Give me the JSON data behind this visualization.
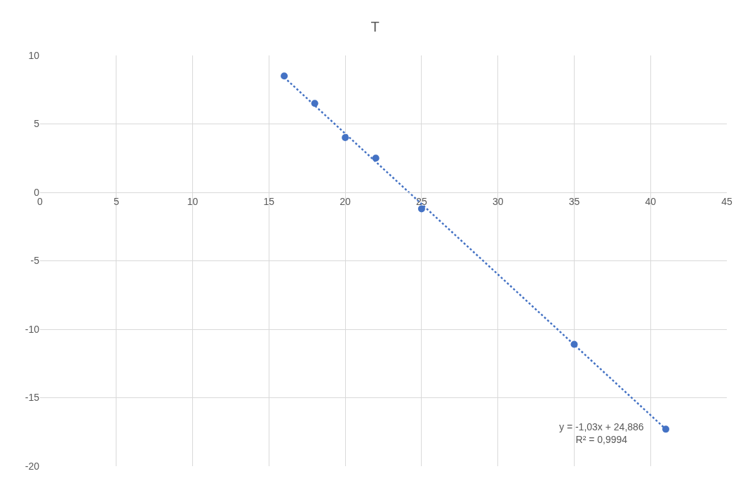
{
  "chart_data": {
    "type": "scatter",
    "title": "T",
    "x": [
      16,
      18,
      20,
      22,
      25,
      35,
      41
    ],
    "series": [
      {
        "color": "#4472c4",
        "marker": "circle",
        "values": [
          8.5,
          6.5,
          4.0,
          2.5,
          -1.2,
          -11.1,
          -17.3
        ]
      },
      {
        "type": "line",
        "color": "#4472c4",
        "line_style": "dotted",
        "marker": "none",
        "x": [
          16,
          41
        ],
        "values": [
          8.4,
          -17.3
        ]
      }
    ],
    "xlim": [
      0,
      45
    ],
    "xticks": [
      0,
      5,
      10,
      15,
      20,
      25,
      30,
      35,
      40,
      45
    ],
    "ylim": [
      -20,
      10
    ],
    "yticks": [
      -20,
      -15,
      -10,
      -5,
      0,
      5,
      10
    ],
    "grid": true,
    "annotations": [
      "y = -1,03x + 24,886\nR² = 0,9994"
    ]
  }
}
